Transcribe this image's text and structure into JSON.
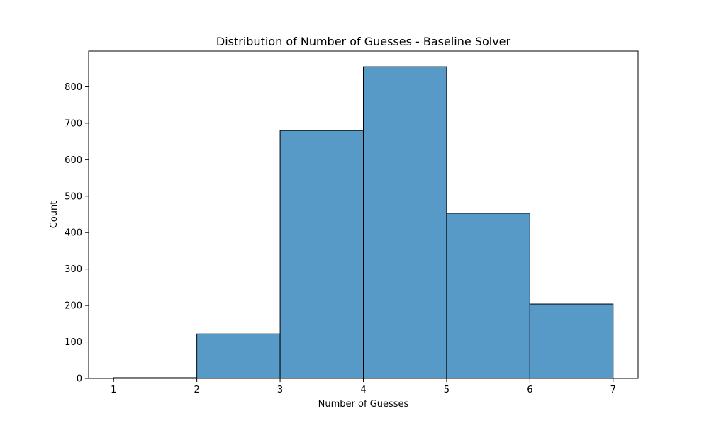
{
  "chart_data": {
    "type": "bar",
    "title": "Distribution of Number of Guesses - Baseline Solver",
    "xlabel": "Number of Guesses",
    "ylabel": "Count",
    "bins": [
      {
        "start": 1,
        "end": 2,
        "count": 2
      },
      {
        "start": 2,
        "end": 3,
        "count": 122
      },
      {
        "start": 3,
        "end": 4,
        "count": 680
      },
      {
        "start": 4,
        "end": 5,
        "count": 855
      },
      {
        "start": 5,
        "end": 6,
        "count": 453
      },
      {
        "start": 6,
        "end": 7,
        "count": 204
      }
    ],
    "xlim": [
      0.7,
      7.3
    ],
    "ylim": [
      0,
      898
    ],
    "xticks": [
      1,
      2,
      3,
      4,
      5,
      6,
      7
    ],
    "yticks": [
      0,
      100,
      200,
      300,
      400,
      500,
      600,
      700,
      800
    ],
    "bar_color": "#5799c7",
    "bar_edge_color": "#000000",
    "grid": false,
    "legend": "none"
  }
}
